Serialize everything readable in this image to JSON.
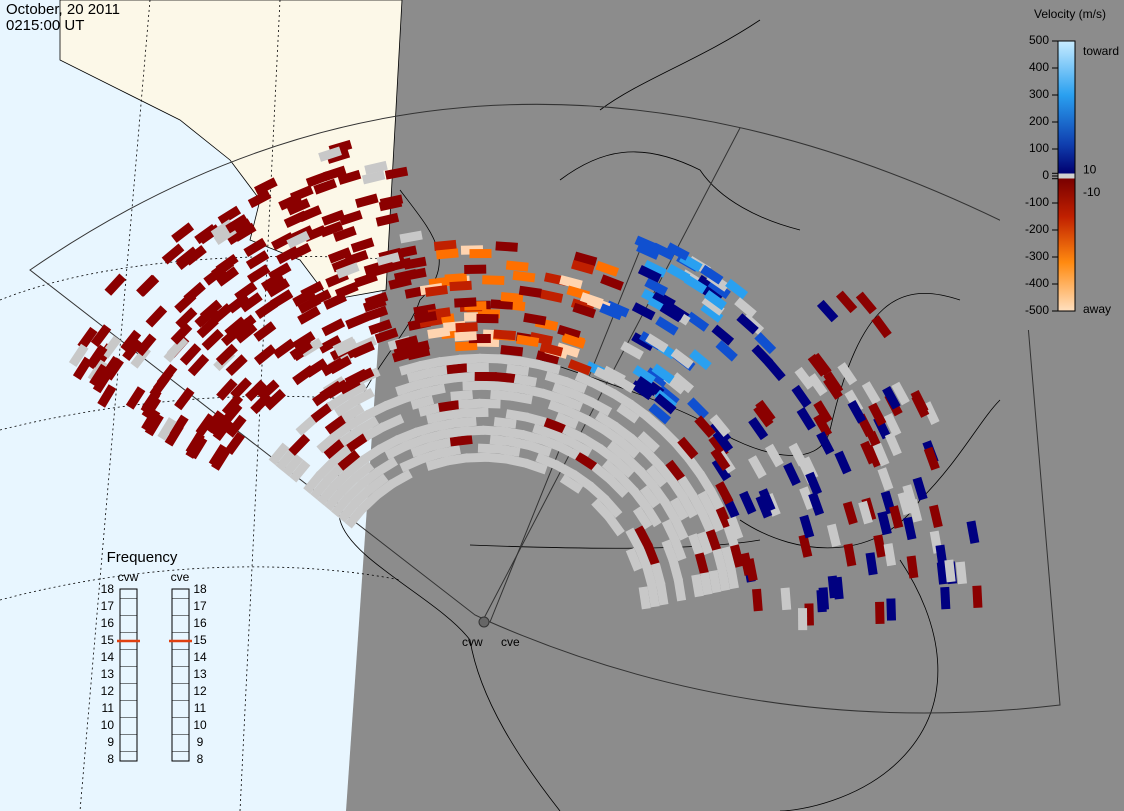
{
  "header": {
    "date": "October, 20 2011",
    "time": "0215:00 UT"
  },
  "colorbar": {
    "title": "Velocity (m/s)",
    "range": [
      -500,
      500
    ],
    "ticks": [
      500,
      400,
      300,
      200,
      100,
      10,
      0,
      -10,
      -100,
      -200,
      -300,
      -400,
      -500
    ],
    "top_label": "toward",
    "bottom_label": "away"
  },
  "frequency": {
    "title": "Frequency",
    "range": [
      8,
      18
    ],
    "ticks": [
      8,
      9,
      10,
      11,
      12,
      13,
      14,
      15,
      16,
      17,
      18
    ],
    "radars": [
      {
        "name": "cvw",
        "selected": 15
      },
      {
        "name": "cve",
        "selected": 15
      }
    ]
  },
  "radar_labels": [
    "cvw",
    "cve"
  ]
}
